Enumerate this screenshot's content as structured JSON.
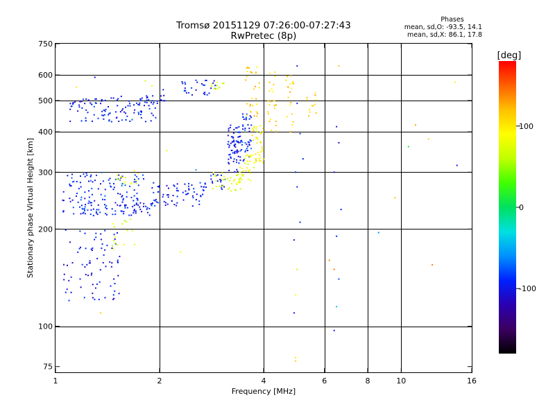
{
  "chart_data": {
    "type": "scatter",
    "title": "Tromsø 20151129 07:26:00-07:27:43",
    "subtitle": "RwPretec (8p)",
    "xlabel": "Frequency [MHz]",
    "ylabel": "Stationary phase Virtual Height [km]",
    "x_scale": "log",
    "y_scale": "log",
    "xlim": [
      1,
      16
    ],
    "ylim": [
      72,
      750
    ],
    "x_ticks": [
      1,
      2,
      4,
      6,
      8,
      10,
      16
    ],
    "y_ticks": [
      75,
      100,
      200,
      300,
      400,
      500,
      600,
      750
    ],
    "grid_x": [
      2,
      4,
      6,
      8,
      10
    ],
    "grid_y": [
      100,
      200,
      300,
      400,
      500,
      600
    ],
    "grid": true,
    "stats": {
      "title": "Phases",
      "line_o": "mean, sd,O: -93.5, 14.1",
      "line_x": "mean, sd,X:  86.1, 17.8"
    },
    "colorbar": {
      "label": "[deg]",
      "min": -180,
      "max": 180,
      "ticks": [
        100,
        0,
        -100
      ],
      "colormap": [
        "#000000",
        "#3c0060",
        "#2a00b0",
        "#0020ff",
        "#0090ff",
        "#00e0e0",
        "#00e060",
        "#40ff00",
        "#c0ff00",
        "#ffff00",
        "#ffc000",
        "#ff6000",
        "#ff0000"
      ]
    },
    "series": [
      {
        "clusters": [
          [
            1.05,
            1.9,
            220,
            245,
            -95,
            90
          ],
          [
            1.9,
            2.7,
            235,
            280,
            -97,
            70
          ],
          [
            2.7,
            3.1,
            265,
            300,
            -90,
            20
          ],
          [
            1.05,
            1.8,
            245,
            300,
            -90,
            90
          ],
          [
            1.5,
            1.75,
            270,
            305,
            80,
            14
          ],
          [
            3.15,
            3.4,
            300,
            420,
            -100,
            60
          ],
          [
            3.4,
            3.7,
            320,
            460,
            -88,
            50
          ],
          [
            1.1,
            1.95,
            430,
            510,
            -95,
            110
          ],
          [
            1.8,
            2.1,
            490,
            520,
            -95,
            20
          ],
          [
            2.3,
            2.9,
            520,
            580,
            -95,
            30
          ],
          [
            1.05,
            1.55,
            120,
            200,
            -100,
            80
          ],
          [
            1.45,
            1.7,
            170,
            215,
            70,
            16
          ]
        ]
      },
      {
        "clusters": [
          [
            2.85,
            3.5,
            262,
            300,
            75,
            35
          ],
          [
            3.4,
            3.75,
            280,
            340,
            80,
            30
          ],
          [
            3.7,
            4.0,
            320,
            420,
            95,
            40
          ],
          [
            3.55,
            3.9,
            440,
            640,
            110,
            30
          ],
          [
            4.1,
            4.35,
            380,
            620,
            105,
            25
          ],
          [
            4.6,
            4.9,
            400,
            600,
            110,
            20
          ],
          [
            5.3,
            5.7,
            440,
            540,
            115,
            12
          ],
          [
            2.8,
            3.1,
            530,
            570,
            70,
            10
          ]
        ]
      },
      {
        "points": [
          [
            5.0,
            640,
            -95
          ],
          [
            5.0,
            490,
            -90
          ],
          [
            4.95,
            300,
            -95
          ],
          [
            5.0,
            270,
            -90
          ],
          [
            5.1,
            210,
            -95
          ],
          [
            4.9,
            185,
            -100
          ],
          [
            5.0,
            150,
            60
          ],
          [
            4.95,
            125,
            90
          ],
          [
            4.9,
            110,
            -100
          ],
          [
            4.95,
            80,
            100
          ],
          [
            4.95,
            78,
            110
          ],
          [
            5.2,
            330,
            -90
          ],
          [
            5.1,
            395,
            -85
          ],
          [
            6.2,
            160,
            140
          ],
          [
            6.4,
            300,
            -100
          ],
          [
            6.5,
            415,
            -100
          ],
          [
            6.6,
            370,
            -110
          ],
          [
            6.7,
            230,
            -90
          ],
          [
            6.5,
            190,
            -90
          ],
          [
            6.6,
            140,
            -80
          ],
          [
            6.5,
            115,
            -40
          ],
          [
            6.4,
            97,
            -100
          ],
          [
            6.4,
            150,
            140
          ],
          [
            6.6,
            640,
            120
          ],
          [
            8.6,
            195,
            -60
          ],
          [
            9.6,
            250,
            120
          ],
          [
            10.5,
            360,
            10
          ],
          [
            11.0,
            420,
            130
          ],
          [
            12.0,
            380,
            110
          ],
          [
            12.3,
            155,
            140
          ],
          [
            14.5,
            315,
            -100
          ],
          [
            14.3,
            570,
            100
          ],
          [
            2.3,
            170,
            90
          ],
          [
            1.35,
            110,
            110
          ],
          [
            1.15,
            550,
            100
          ],
          [
            1.3,
            590,
            -100
          ],
          [
            1.55,
            515,
            -100
          ],
          [
            1.82,
            575,
            60
          ],
          [
            1.9,
            555,
            80
          ],
          [
            2.1,
            350,
            90
          ],
          [
            2.55,
            305,
            -60
          ],
          [
            2.05,
            540,
            -95
          ]
        ]
      }
    ]
  }
}
